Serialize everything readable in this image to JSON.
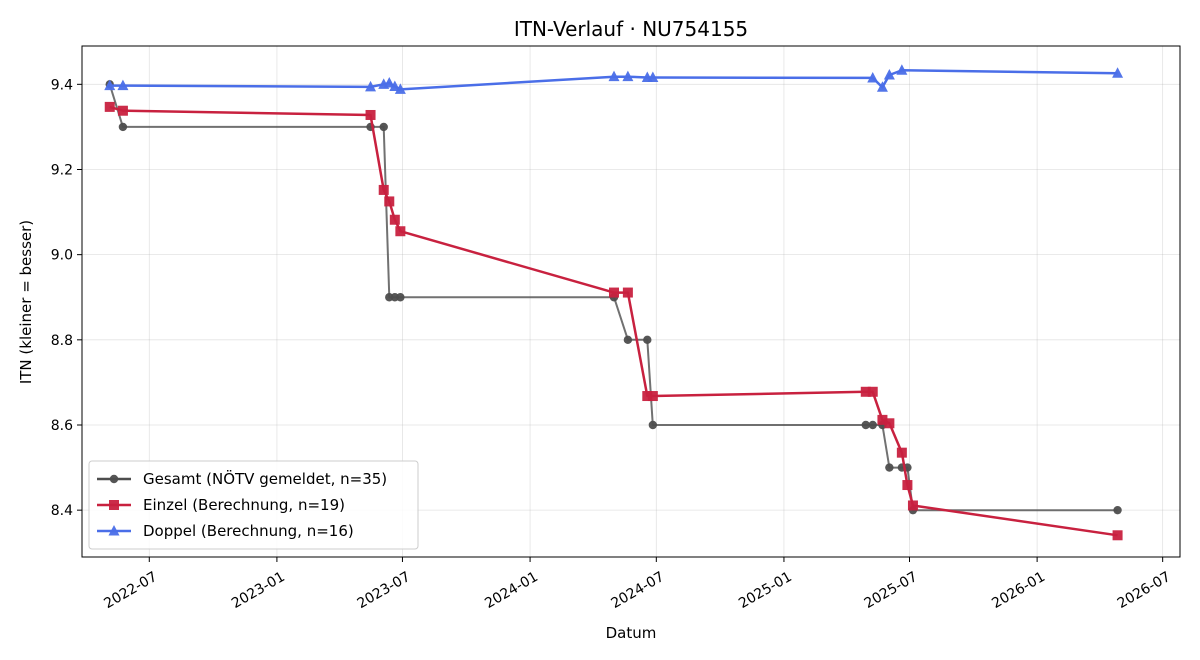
{
  "chart_data": {
    "type": "line",
    "title": "ITN-Verlauf · NU754155",
    "xlabel": "Datum",
    "ylabel": "ITN  (kleiner = besser)",
    "xlim": [
      "2022-03-26",
      "2026-07-26"
    ],
    "ylim": [
      8.29,
      9.49
    ],
    "x_ticks": [
      "2022-07",
      "2023-01",
      "2023-07",
      "2024-01",
      "2024-07",
      "2025-01",
      "2025-07",
      "2026-01",
      "2026-07"
    ],
    "y_ticks": [
      8.4,
      8.6,
      8.8,
      9.0,
      9.2,
      9.4
    ],
    "grid": true,
    "legend_position": "lower-left",
    "series": [
      {
        "name": "Gesamt (NÖTV gemeldet, n=35)",
        "color": "#4d4d4d",
        "marker": "circle",
        "points": [
          [
            "2022-05-05",
            9.4
          ],
          [
            "2022-05-24",
            9.3
          ],
          [
            "2023-05-16",
            9.3
          ],
          [
            "2023-06-04",
            9.3
          ],
          [
            "2023-06-12",
            8.9
          ],
          [
            "2023-06-20",
            8.9
          ],
          [
            "2023-06-28",
            8.9
          ],
          [
            "2024-05-01",
            8.9
          ],
          [
            "2024-05-21",
            8.8
          ],
          [
            "2024-06-18",
            8.8
          ],
          [
            "2024-06-26",
            8.6
          ],
          [
            "2025-04-29",
            8.6
          ],
          [
            "2025-05-09",
            8.6
          ],
          [
            "2025-05-23",
            8.6
          ],
          [
            "2025-06-02",
            8.5
          ],
          [
            "2025-06-20",
            8.5
          ],
          [
            "2025-06-28",
            8.5
          ],
          [
            "2025-07-06",
            8.4
          ],
          [
            "2026-04-27",
            8.4
          ]
        ]
      },
      {
        "name": "Einzel (Berechnung, n=19)",
        "color": "#c8213f",
        "marker": "square",
        "points": [
          [
            "2022-05-05",
            9.347
          ],
          [
            "2022-05-24",
            9.338
          ],
          [
            "2023-05-16",
            9.328
          ],
          [
            "2023-06-04",
            9.152
          ],
          [
            "2023-06-12",
            9.125
          ],
          [
            "2023-06-20",
            9.082
          ],
          [
            "2023-06-28",
            9.055
          ],
          [
            "2024-05-01",
            8.911
          ],
          [
            "2024-05-21",
            8.911
          ],
          [
            "2024-06-18",
            8.668
          ],
          [
            "2024-06-26",
            8.668
          ],
          [
            "2025-04-29",
            8.678
          ],
          [
            "2025-05-09",
            8.678
          ],
          [
            "2025-05-23",
            8.612
          ],
          [
            "2025-06-02",
            8.604
          ],
          [
            "2025-06-20",
            8.535
          ],
          [
            "2025-06-28",
            8.459
          ],
          [
            "2025-07-06",
            8.411
          ],
          [
            "2026-04-27",
            8.341
          ]
        ]
      },
      {
        "name": "Doppel (Berechnung, n=16)",
        "color": "#4a6ee8",
        "marker": "triangle",
        "points": [
          [
            "2022-05-05",
            9.397
          ],
          [
            "2022-05-24",
            9.397
          ],
          [
            "2023-05-16",
            9.394
          ],
          [
            "2023-06-04",
            9.4
          ],
          [
            "2023-06-12",
            9.403
          ],
          [
            "2023-06-20",
            9.395
          ],
          [
            "2023-06-28",
            9.388
          ],
          [
            "2024-05-01",
            9.418
          ],
          [
            "2024-05-21",
            9.418
          ],
          [
            "2024-06-18",
            9.416
          ],
          [
            "2024-06-26",
            9.416
          ],
          [
            "2025-05-09",
            9.415
          ],
          [
            "2025-05-23",
            9.393
          ],
          [
            "2025-06-02",
            9.422
          ],
          [
            "2025-06-20",
            9.433
          ],
          [
            "2026-04-27",
            9.426
          ]
        ]
      }
    ]
  }
}
